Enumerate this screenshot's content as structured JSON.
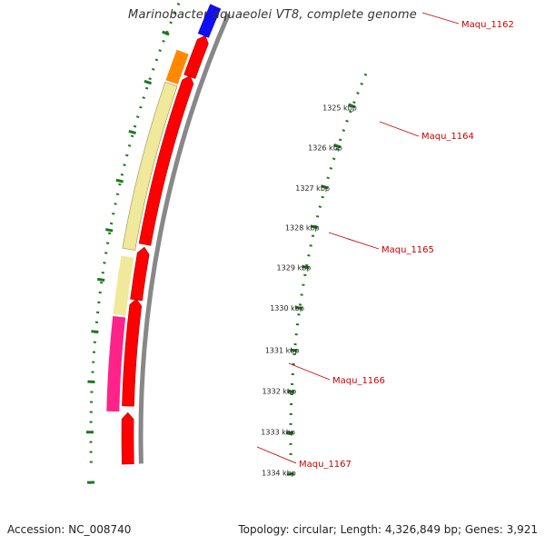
{
  "title": "Marinobacter aquaeolei VT8, complete genome",
  "footer": {
    "accession": "Accession: NC_008740",
    "summary": "Topology: circular; Length: 4,326,849 bp; Genes: 3,921"
  },
  "tick_labels": [
    "1325 kbp",
    "1326 kbp",
    "1327 kbp",
    "1328 kbp",
    "1329 kbp",
    "1330 kbp",
    "1331 kbp",
    "1332 kbp",
    "1333 kbp",
    "1334 kbp"
  ],
  "gene_labels": [
    "Maqu_1162",
    "Maqu_1164",
    "Maqu_1165",
    "Maqu_1166",
    "Maqu_1167"
  ],
  "colors": {
    "backbone": "#888888",
    "cds": "#ff0000",
    "blue_feature": "#1010ee",
    "orange_feature": "#ff8800",
    "yellow_feature": "#f0e89a",
    "pink_feature": "#ff2288",
    "ticks": "#1a7a1a",
    "gene_label": "#cc0000",
    "tick_label": "#222222"
  }
}
